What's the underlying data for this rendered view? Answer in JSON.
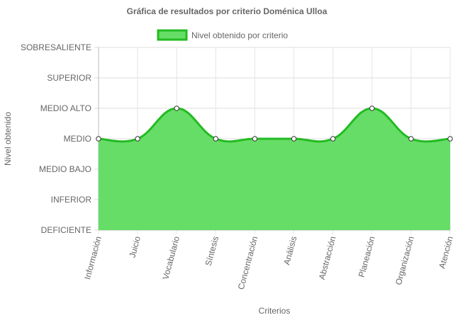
{
  "chart_data": {
    "type": "area",
    "title": "Gráfica de resultados por criterio Doménica Ulloa",
    "xlabel": "Criterios",
    "ylabel": "Nivel obtenido",
    "y_levels": [
      "DEFICIENTE",
      "INFERIOR",
      "MEDIO BAJO",
      "MEDIO",
      "MEDIO ALTO",
      "SUPERIOR",
      "SOBRESALIENTE"
    ],
    "ylim": [
      0,
      6
    ],
    "categories": [
      "Información",
      "Juicio",
      "Vocabulario",
      "Síntesis",
      "Concentración",
      "Análisis",
      "Abstracción",
      "Planeación",
      "Organización",
      "Atención"
    ],
    "series": [
      {
        "name": "Nivel obtenido por criterio",
        "values": [
          3,
          3,
          4,
          3,
          3,
          3,
          3,
          4,
          3,
          3
        ],
        "value_labels": [
          "MEDIO",
          "MEDIO",
          "MEDIO ALTO",
          "MEDIO",
          "MEDIO",
          "MEDIO",
          "MEDIO",
          "MEDIO ALTO",
          "MEDIO",
          "MEDIO"
        ]
      }
    ],
    "legend_position": "top-center",
    "grid": true,
    "colors": {
      "fill": "#66dd66",
      "line": "#22bb22",
      "grid": "#e5e5e5",
      "point_fill": "#ffffff",
      "point_stroke": "#333333"
    }
  }
}
